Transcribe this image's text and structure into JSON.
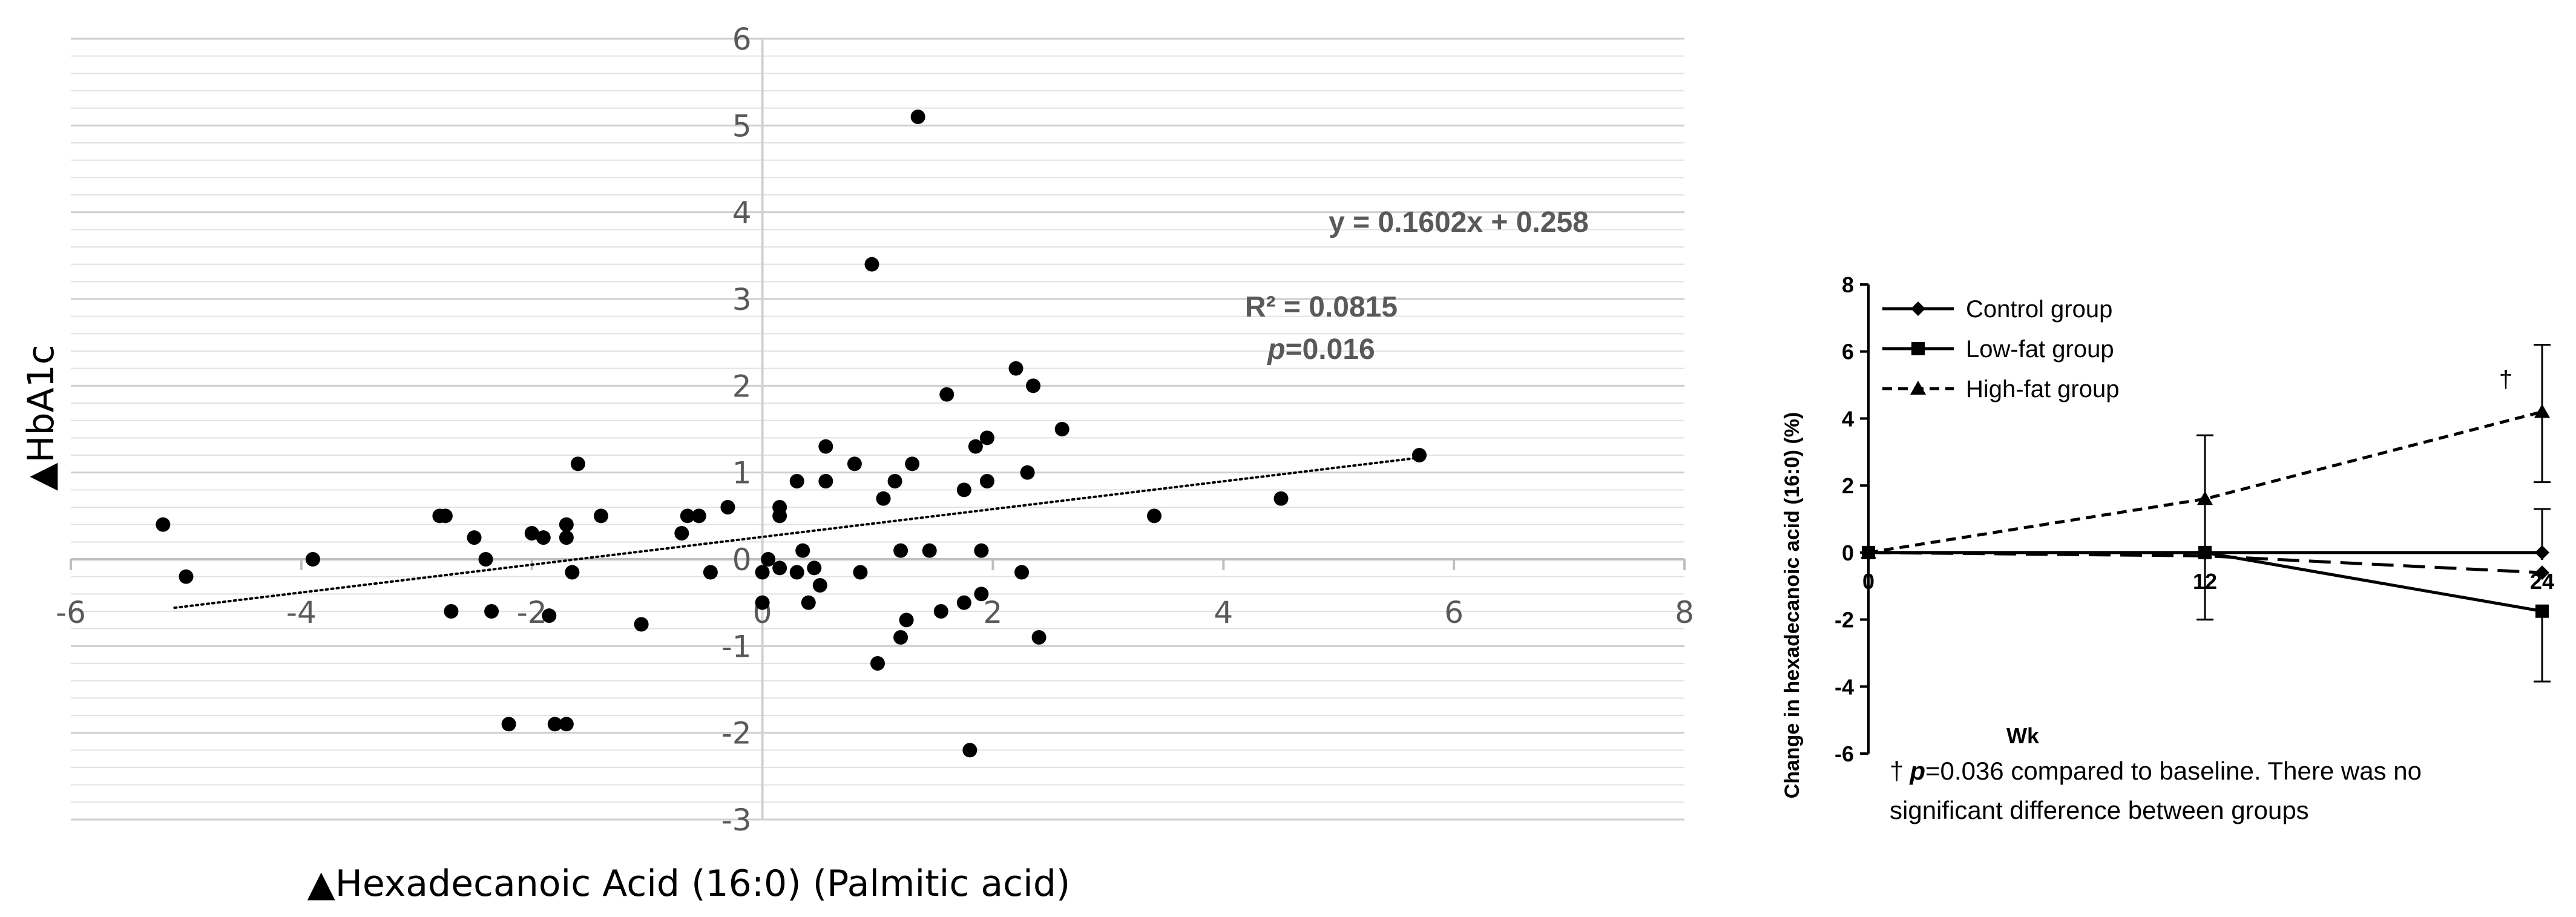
{
  "chart_data": [
    {
      "type": "scatter",
      "xlabel": "▲Hexadecanoic Acid (16:0) (Palmitic acid)",
      "ylabel": "▲HbA1c",
      "xlim": [
        -6,
        8
      ],
      "ylim": [
        -3,
        6
      ],
      "xticks": [
        "-6",
        "-4",
        "-2",
        "0",
        "2",
        "4",
        "6",
        "8"
      ],
      "yticks": [
        "-3",
        "-2",
        "-1",
        "0",
        "1",
        "2",
        "3",
        "4",
        "5",
        "6"
      ],
      "gridlines": "horizontal minor every 0.2",
      "trendline": {
        "style": "dotted linear",
        "slope": 0.1602,
        "intercept": 0.258,
        "x_range": [
          -5.1,
          5.7
        ]
      },
      "annotations": {
        "equation": "y = 0.1602x + 0.258",
        "r2": "R² = 0.0815",
        "p_italic": "p",
        "p_value": "=0.016"
      },
      "points": [
        [
          -5.2,
          0.4
        ],
        [
          -5.0,
          -0.2
        ],
        [
          -3.9,
          0.0
        ],
        [
          -2.8,
          0.5
        ],
        [
          -2.75,
          0.5
        ],
        [
          -2.7,
          -0.6
        ],
        [
          -2.5,
          0.25
        ],
        [
          -2.4,
          0.0
        ],
        [
          -2.35,
          -0.6
        ],
        [
          -2.2,
          -1.9
        ],
        [
          -2.0,
          0.3
        ],
        [
          -1.9,
          0.25
        ],
        [
          -1.85,
          -0.65
        ],
        [
          -1.8,
          -1.9
        ],
        [
          -1.7,
          0.4
        ],
        [
          -1.7,
          0.25
        ],
        [
          -1.7,
          -1.9
        ],
        [
          -1.65,
          -0.15
        ],
        [
          -1.6,
          1.1
        ],
        [
          -1.4,
          0.5
        ],
        [
          -1.05,
          -0.75
        ],
        [
          -0.7,
          0.3
        ],
        [
          -0.65,
          0.5
        ],
        [
          -0.55,
          0.5
        ],
        [
          -0.45,
          -0.15
        ],
        [
          -0.3,
          0.6
        ],
        [
          0.0,
          -0.15
        ],
        [
          0.0,
          -0.5
        ],
        [
          0.05,
          0.0
        ],
        [
          0.15,
          0.5
        ],
        [
          0.15,
          0.6
        ],
        [
          0.15,
          -0.1
        ],
        [
          0.3,
          0.9
        ],
        [
          0.3,
          -0.15
        ],
        [
          0.35,
          0.1
        ],
        [
          0.4,
          -0.5
        ],
        [
          0.45,
          -0.1
        ],
        [
          0.5,
          -0.3
        ],
        [
          0.55,
          0.9
        ],
        [
          0.55,
          1.3
        ],
        [
          0.8,
          1.1
        ],
        [
          0.85,
          -0.15
        ],
        [
          0.95,
          3.4
        ],
        [
          1.0,
          -1.2
        ],
        [
          1.05,
          0.7
        ],
        [
          1.15,
          0.9
        ],
        [
          1.2,
          0.1
        ],
        [
          1.2,
          -0.9
        ],
        [
          1.25,
          -0.7
        ],
        [
          1.3,
          1.1
        ],
        [
          1.35,
          5.1
        ],
        [
          1.45,
          0.1
        ],
        [
          1.55,
          -0.6
        ],
        [
          1.6,
          1.9
        ],
        [
          1.75,
          -0.5
        ],
        [
          1.75,
          0.8
        ],
        [
          1.8,
          -2.2
        ],
        [
          1.85,
          1.3
        ],
        [
          1.9,
          0.1
        ],
        [
          1.9,
          -0.4
        ],
        [
          1.95,
          0.9
        ],
        [
          1.95,
          1.4
        ],
        [
          2.2,
          2.2
        ],
        [
          2.25,
          -0.15
        ],
        [
          2.3,
          1.0
        ],
        [
          2.35,
          2.0
        ],
        [
          2.4,
          -0.9
        ],
        [
          2.6,
          1.5
        ],
        [
          3.4,
          0.5
        ],
        [
          4.5,
          0.7
        ],
        [
          5.7,
          1.2
        ]
      ]
    },
    {
      "type": "line",
      "ylabel": "Change in hexadecanoic acid (16:0) (%)",
      "xlabel": "Wk",
      "categories": [
        "0",
        "12",
        "24"
      ],
      "yticks": [
        "8",
        "6",
        "4",
        "2",
        "0",
        "-2",
        "-4",
        "-6"
      ],
      "ylim": [
        -6,
        8
      ],
      "series": [
        {
          "name": "Control group",
          "marker": "diamond",
          "style": "solid",
          "values": [
            0,
            0,
            0
          ],
          "err_up": [
            0,
            0,
            1.3
          ],
          "err_down": [
            0,
            0,
            0
          ]
        },
        {
          "name": "Low-fat group",
          "marker": "square",
          "style": "solid",
          "values": [
            0,
            0,
            -1.75
          ],
          "err_up": [
            0,
            0,
            0
          ],
          "err_down": [
            0,
            0,
            2.1
          ]
        },
        {
          "name": "High-fat group",
          "marker": "triangle",
          "style": "dashed",
          "values": [
            0,
            1.6,
            4.2
          ],
          "err_up": [
            0,
            1.9,
            2.0
          ],
          "err_down": [
            0,
            3.6,
            2.1
          ]
        }
      ],
      "extra_dashed": {
        "values": [
          0,
          -0.1,
          -0.6
        ],
        "err_down_12": 1.9
      },
      "dagger": "†",
      "note_dagger": "†",
      "note_p": "p",
      "note_line1": "=0.036 compared to baseline. There was no",
      "note_line2": "significant difference between groups"
    }
  ]
}
